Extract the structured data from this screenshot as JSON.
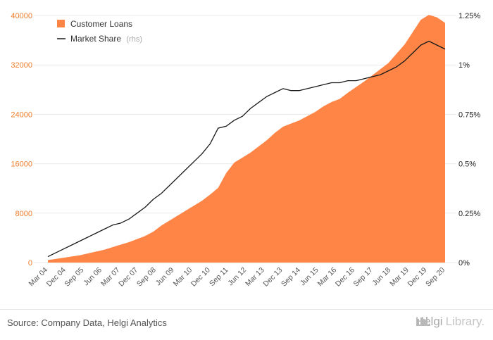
{
  "chart_data": {
    "type": "area",
    "colors": {
      "area": "#ff8547",
      "line": "#1a1a1a",
      "left_axis": "#f07c2a",
      "right_axis": "#222222"
    },
    "left_axis": {
      "ylim": [
        0,
        40000
      ],
      "ticks": [
        0,
        8000,
        16000,
        24000,
        32000,
        40000
      ],
      "tick_labels": [
        "0",
        "8000",
        "16000",
        "24000",
        "32000",
        "40000"
      ]
    },
    "right_axis": {
      "ylim": [
        0,
        1.25
      ],
      "ticks": [
        0,
        0.25,
        0.5,
        0.75,
        1.0,
        1.25
      ],
      "tick_labels": [
        "0%",
        "0.25%",
        "0.5%",
        "0.75%",
        "1%",
        "1.25%"
      ]
    },
    "x_tick_labels": [
      "Mar 04",
      "Dec 04",
      "Sep 05",
      "Jun 06",
      "Mar 07",
      "Dec 07",
      "Sep 08",
      "Jun 09",
      "Mar 10",
      "Dec 10",
      "Sep 11",
      "Jun 12",
      "Mar 13",
      "Dec 13",
      "Sep 14",
      "Jun 15",
      "Mar 16",
      "Dec 16",
      "Sep 17",
      "Jun 18",
      "Mar 19",
      "Dec 19",
      "Sep 20"
    ],
    "grid": "horizontal",
    "legend_placement": "top-left",
    "series": [
      {
        "name": "Customer Loans",
        "kind": "area",
        "axis": "left",
        "values": [
          400,
          600,
          800,
          1000,
          1200,
          1500,
          1800,
          2100,
          2500,
          2900,
          3300,
          3800,
          4300,
          5000,
          6000,
          6800,
          7600,
          8400,
          9200,
          10000,
          11000,
          12100,
          14500,
          16200,
          17000,
          17800,
          18800,
          19800,
          21000,
          22000,
          22500,
          23000,
          23700,
          24400,
          25300,
          26000,
          26500,
          27500,
          28400,
          29300,
          30300,
          31300,
          32300,
          33800,
          35300,
          37300,
          39300,
          40100,
          39700,
          38800
        ]
      },
      {
        "name": "Market Share",
        "name_suffix": "(rhs)",
        "kind": "line",
        "axis": "right",
        "values": [
          0.03,
          0.05,
          0.07,
          0.09,
          0.11,
          0.13,
          0.15,
          0.17,
          0.19,
          0.2,
          0.22,
          0.25,
          0.28,
          0.32,
          0.35,
          0.39,
          0.43,
          0.47,
          0.51,
          0.55,
          0.6,
          0.68,
          0.69,
          0.72,
          0.74,
          0.78,
          0.81,
          0.84,
          0.86,
          0.88,
          0.87,
          0.87,
          0.88,
          0.89,
          0.9,
          0.91,
          0.91,
          0.92,
          0.92,
          0.93,
          0.94,
          0.95,
          0.97,
          0.99,
          1.02,
          1.06,
          1.1,
          1.12,
          1.1,
          1.08
        ]
      }
    ]
  },
  "legend": {
    "items": [
      {
        "label": "Customer Loans",
        "suffix": ""
      },
      {
        "label": "Market Share",
        "suffix": "(rhs)"
      }
    ]
  },
  "footer": {
    "source": "Source: Company Data, Helgi Analytics",
    "brand_part1": "Helgi",
    "brand_part2": "Library."
  }
}
